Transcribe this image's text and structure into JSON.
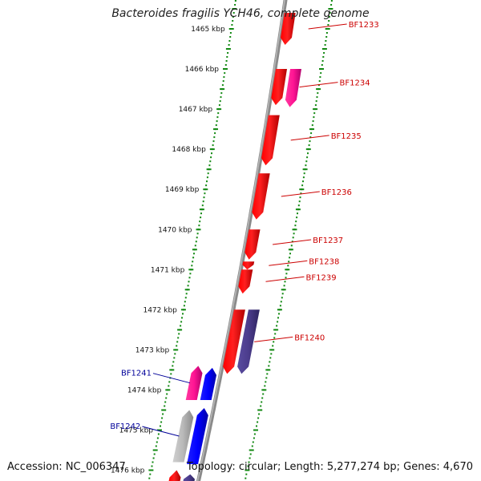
{
  "title": "Bacteroides fragilis YCH46, complete genome",
  "accession": "Accession: NC_006347",
  "summary": "Topology: circular; Length: 5,277,274 bp; Genes: 4,670",
  "colors": {
    "backbone": "#888888",
    "scale_tick": "#118811",
    "forward_label": "#cc0000",
    "reverse_label": "#000099",
    "red": "#ff0000",
    "pink": "#ff1493",
    "blue": "#0000ff",
    "purple": "#4b3c8c",
    "grey": "#aaaaaa"
  },
  "scale_labels": [
    {
      "kbp": 1465,
      "text": "1465 kbp"
    },
    {
      "kbp": 1466,
      "text": "1466 kbp"
    },
    {
      "kbp": 1467,
      "text": "1467 kbp"
    },
    {
      "kbp": 1468,
      "text": "1468 kbp"
    },
    {
      "kbp": 1469,
      "text": "1469 kbp"
    },
    {
      "kbp": 1470,
      "text": "1470 kbp"
    },
    {
      "kbp": 1471,
      "text": "1471 kbp"
    },
    {
      "kbp": 1472,
      "text": "1472 kbp"
    },
    {
      "kbp": 1473,
      "text": "1473 kbp"
    },
    {
      "kbp": 1474,
      "text": "1474 kbp"
    },
    {
      "kbp": 1475,
      "text": "1475 kbp"
    },
    {
      "kbp": 1476,
      "text": "1476 kbp"
    }
  ],
  "genes": [
    {
      "label": "BF1233",
      "strand": "forward",
      "start_kbp": 1464.6,
      "end_kbp": 1465.4,
      "color": "red"
    },
    {
      "label": "BF1234",
      "strand": "forward",
      "start_kbp": 1466.0,
      "end_kbp": 1466.9,
      "color": "red"
    },
    {
      "label": "",
      "strand": "forward",
      "start_kbp": 1466.0,
      "end_kbp": 1466.95,
      "color": "pink",
      "lane": 2
    },
    {
      "label": "BF1235",
      "strand": "forward",
      "start_kbp": 1467.15,
      "end_kbp": 1468.4,
      "color": "red"
    },
    {
      "label": "BF1236",
      "strand": "forward",
      "start_kbp": 1468.6,
      "end_kbp": 1469.75,
      "color": "red"
    },
    {
      "label": "BF1237",
      "strand": "forward",
      "start_kbp": 1470.0,
      "end_kbp": 1470.75,
      "color": "red"
    },
    {
      "label": "BF1238",
      "strand": "forward",
      "start_kbp": 1470.8,
      "end_kbp": 1471.0,
      "color": "red"
    },
    {
      "label": "BF1239",
      "strand": "forward",
      "start_kbp": 1471.0,
      "end_kbp": 1471.6,
      "color": "red"
    },
    {
      "label": "BF1240",
      "strand": "forward",
      "start_kbp": 1472.0,
      "end_kbp": 1473.6,
      "color": "red"
    },
    {
      "label": "",
      "strand": "forward",
      "start_kbp": 1472.0,
      "end_kbp": 1473.6,
      "color": "purple",
      "lane": 2
    },
    {
      "label": "BF1241",
      "strand": "reverse",
      "start_kbp": 1473.4,
      "end_kbp": 1474.25,
      "color": "pink"
    },
    {
      "label": "",
      "strand": "reverse",
      "start_kbp": 1473.45,
      "end_kbp": 1474.25,
      "color": "blue",
      "lane": 2
    },
    {
      "label": "BF1242",
      "strand": "reverse",
      "start_kbp": 1474.5,
      "end_kbp": 1475.8,
      "color": "grey"
    },
    {
      "label": "",
      "strand": "reverse",
      "start_kbp": 1474.45,
      "end_kbp": 1475.85,
      "color": "blue",
      "lane": 2
    },
    {
      "label": "",
      "strand": "reverse",
      "start_kbp": 1476.0,
      "end_kbp": 1476.3,
      "color": "red"
    },
    {
      "label": "",
      "strand": "reverse",
      "start_kbp": 1476.1,
      "end_kbp": 1476.3,
      "color": "purple",
      "lane": 2
    }
  ]
}
